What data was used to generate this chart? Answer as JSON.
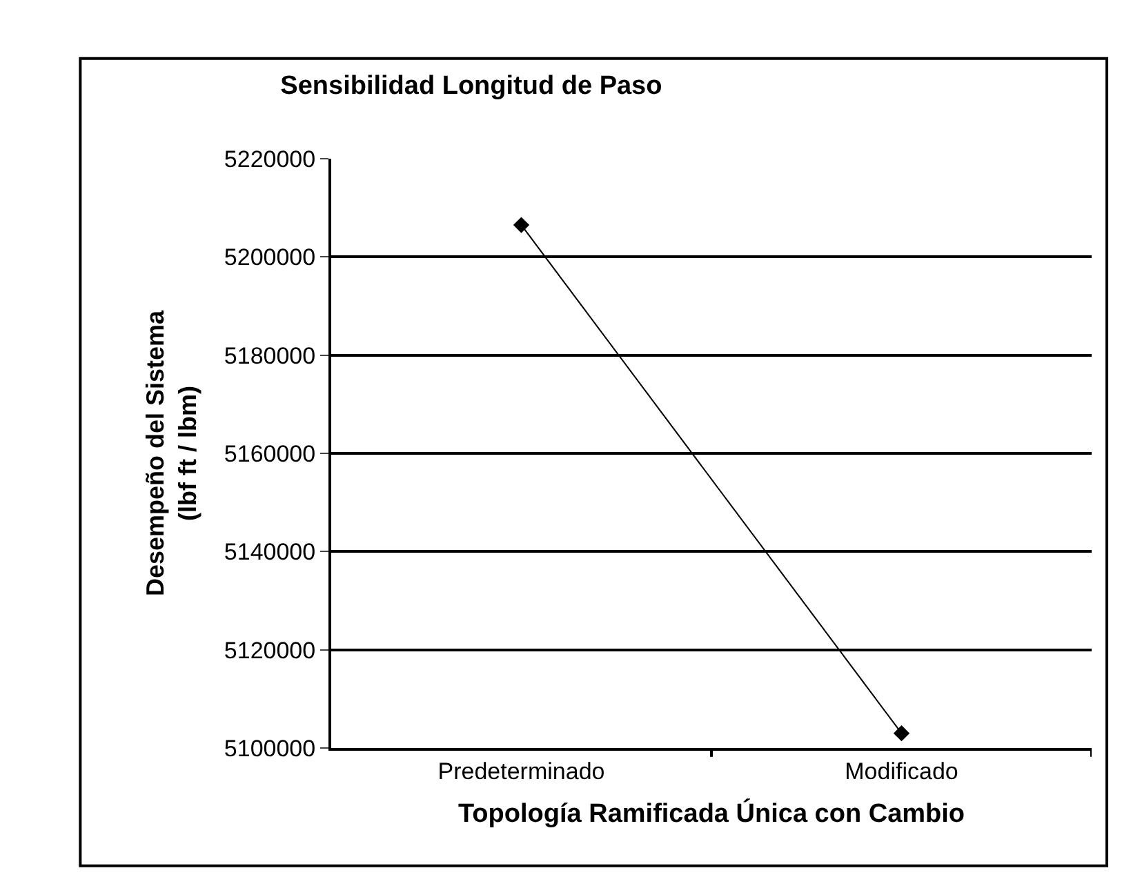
{
  "chart_data": {
    "type": "line",
    "title": "Sensibilidad Longitud de Paso",
    "xlabel": "Topología Ramificada Única con Cambio",
    "ylabel": "Desempeño del Sistema\n(lbf ft / lbm)",
    "categories": [
      "Predeterminado",
      "Modificado"
    ],
    "series": [
      {
        "color": "#000000",
        "values": [
          5206500,
          5103000
        ]
      }
    ],
    "ylim": [
      5100000,
      5220000
    ],
    "yticks": [
      5100000,
      5120000,
      5140000,
      5160000,
      5180000,
      5200000,
      5220000
    ],
    "grid": "y",
    "legend": false,
    "marker": "diamond",
    "line_style": "solid"
  }
}
